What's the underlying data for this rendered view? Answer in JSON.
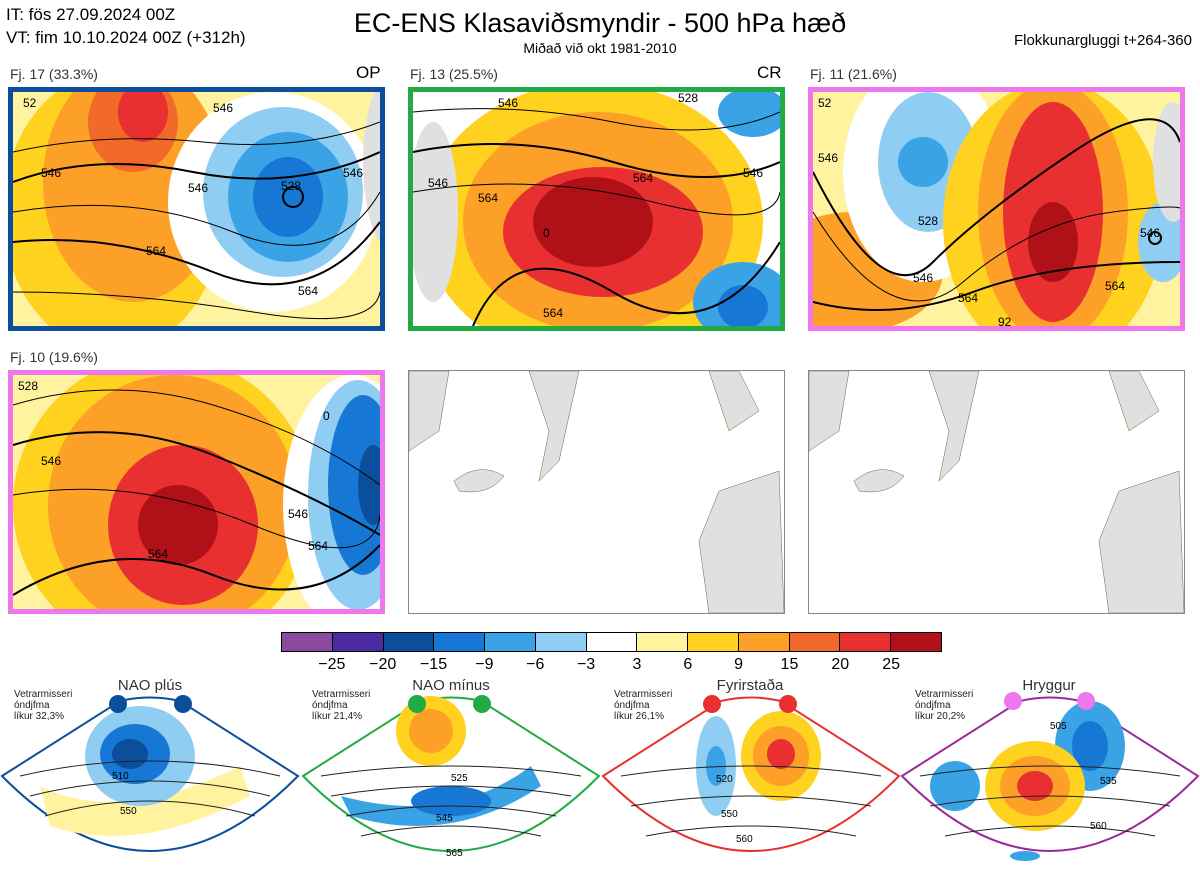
{
  "header": {
    "it": "IT: fös 27.09.2024 00Z",
    "vt": "VT: fim 10.10.2024 00Z  (+312h)",
    "title": "EC-ENS Klasaviðsmyndir - 500 hPa hæð",
    "subtitle": "Miðað við okt 1981-2010",
    "window": "Flokkunargluggi t+264-360"
  },
  "clusters": [
    {
      "label": "Fj. 17 (33.3%)",
      "tag": "OP",
      "frame": "#0b4f9c",
      "regime": "NAO plús"
    },
    {
      "label": "Fj. 13 (25.5%)",
      "tag": "CR",
      "frame": "#22aa44",
      "regime": "NAO mínus"
    },
    {
      "label": "Fj. 11 (21.6%)",
      "tag": "",
      "frame": "#ee77ee",
      "regime": "Hryggur"
    },
    {
      "label": "Fj. 10 (19.6%)",
      "tag": "",
      "frame": "#ee77ee",
      "regime": "Hryggur"
    }
  ],
  "contour_labels": {
    "panel1": [
      "546",
      "546",
      "528",
      "546",
      "564",
      "564",
      "546",
      "52"
    ],
    "panel2": [
      "546",
      "564",
      "564",
      "546",
      "564",
      "528",
      "546",
      "0"
    ],
    "panel3": [
      "546",
      "528",
      "546",
      "564",
      "546",
      "564",
      "92",
      "52"
    ],
    "panel4": [
      "546",
      "546",
      "564",
      "564",
      "528",
      "0"
    ]
  },
  "colorbar": {
    "colors": [
      "#8a4a9e",
      "#4a2aa0",
      "#0b4f9c",
      "#1678d4",
      "#3aa3e6",
      "#8fcdf2",
      "#ffffff",
      "#fff3a0",
      "#ffd21f",
      "#fca028",
      "#f26a2a",
      "#e83030",
      "#b01018"
    ],
    "ticks": [
      "−25",
      "−20",
      "−15",
      "−9",
      "−6",
      "−3",
      "3",
      "6",
      "9",
      "15",
      "20",
      "25"
    ]
  },
  "regimes": [
    {
      "name": "NAO plús",
      "note": [
        "Vetrarmisseri",
        "óndjfma",
        "líkur 32,3%"
      ],
      "color": "#0b4f9c",
      "labels": [
        "510",
        "550"
      ]
    },
    {
      "name": "NAO mínus",
      "note": [
        "Vetrarmisseri",
        "óndjfma",
        "líkur 21,4%"
      ],
      "color": "#22aa44",
      "labels": [
        "525",
        "545",
        "565"
      ]
    },
    {
      "name": "Fyrirstaða",
      "note": [
        "Vetrarmisseri",
        "óndjfma",
        "líkur 26,1%"
      ],
      "color": "#e83030",
      "labels": [
        "520",
        "550",
        "560"
      ]
    },
    {
      "name": "Hryggur",
      "note": [
        "Vetrarmisseri",
        "óndjfma",
        "líkur 20,2%"
      ],
      "color": "#9a2a9a",
      "labels": [
        "505",
        "535",
        "560"
      ]
    }
  ]
}
